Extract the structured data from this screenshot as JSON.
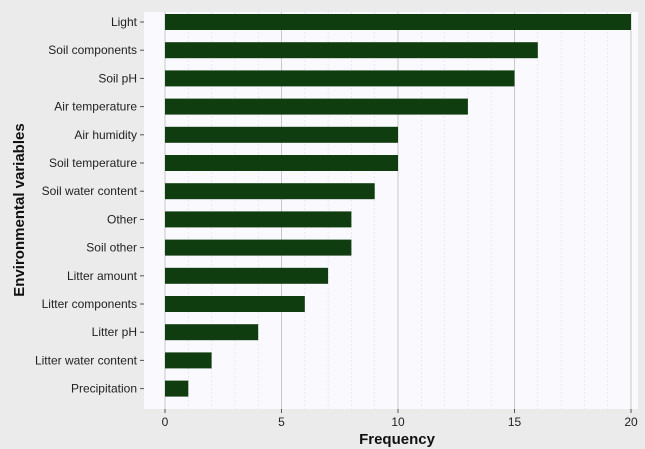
{
  "chart_data": {
    "type": "bar",
    "orientation": "horizontal",
    "categories": [
      "Light",
      "Soil components",
      "Soil pH",
      "Air temperature",
      "Air humidity",
      "Soil temperature",
      "Soil water content",
      "Other",
      "Soil other",
      "Litter amount",
      "Litter components",
      "Litter pH",
      "Litter water content",
      "Precipitation"
    ],
    "values": [
      20,
      16,
      15,
      13,
      10,
      10,
      9,
      8,
      8,
      7,
      6,
      4,
      2,
      1
    ],
    "xlabel": "Frequency",
    "ylabel": "Environmental variables",
    "xlim": [
      0,
      20
    ],
    "xticks": [
      0,
      5,
      10,
      15,
      20
    ],
    "grid": true,
    "colors": {
      "bar": "#0f3d0f",
      "panel": "#fafafe",
      "frame": "#ebebeb"
    }
  }
}
